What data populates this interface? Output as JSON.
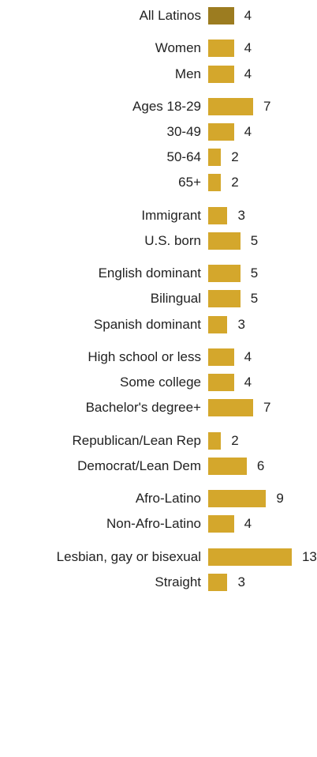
{
  "chart_data": {
    "type": "bar",
    "orientation": "horizontal",
    "colors": {
      "highlight": "#9c7c20",
      "default": "#d4a72c"
    },
    "groups": [
      {
        "rows": [
          {
            "label": "All Latinos",
            "value": 4,
            "highlight": true
          }
        ]
      },
      {
        "rows": [
          {
            "label": "Women",
            "value": 4
          },
          {
            "label": "Men",
            "value": 4
          }
        ]
      },
      {
        "rows": [
          {
            "label": "Ages 18-29",
            "value": 7
          },
          {
            "label": "30-49",
            "value": 4
          },
          {
            "label": "50-64",
            "value": 2
          },
          {
            "label": "65+",
            "value": 2
          }
        ]
      },
      {
        "rows": [
          {
            "label": "Immigrant",
            "value": 3
          },
          {
            "label": "U.S. born",
            "value": 5
          }
        ]
      },
      {
        "rows": [
          {
            "label": "English dominant",
            "value": 5
          },
          {
            "label": "Bilingual",
            "value": 5
          },
          {
            "label": "Spanish dominant",
            "value": 3
          }
        ]
      },
      {
        "rows": [
          {
            "label": "High school or less",
            "value": 4
          },
          {
            "label": "Some college",
            "value": 4
          },
          {
            "label": "Bachelor's degree+",
            "value": 7
          }
        ]
      },
      {
        "rows": [
          {
            "label": "Republican/Lean Rep",
            "value": 2
          },
          {
            "label": "Democrat/Lean Dem",
            "value": 6
          }
        ]
      },
      {
        "rows": [
          {
            "label": "Afro-Latino",
            "value": 9
          },
          {
            "label": "Non-Afro-Latino",
            "value": 4
          }
        ]
      },
      {
        "rows": [
          {
            "label": "Lesbian, gay or bisexual",
            "value": 13
          },
          {
            "label": "Straight",
            "value": 3
          }
        ]
      }
    ]
  }
}
